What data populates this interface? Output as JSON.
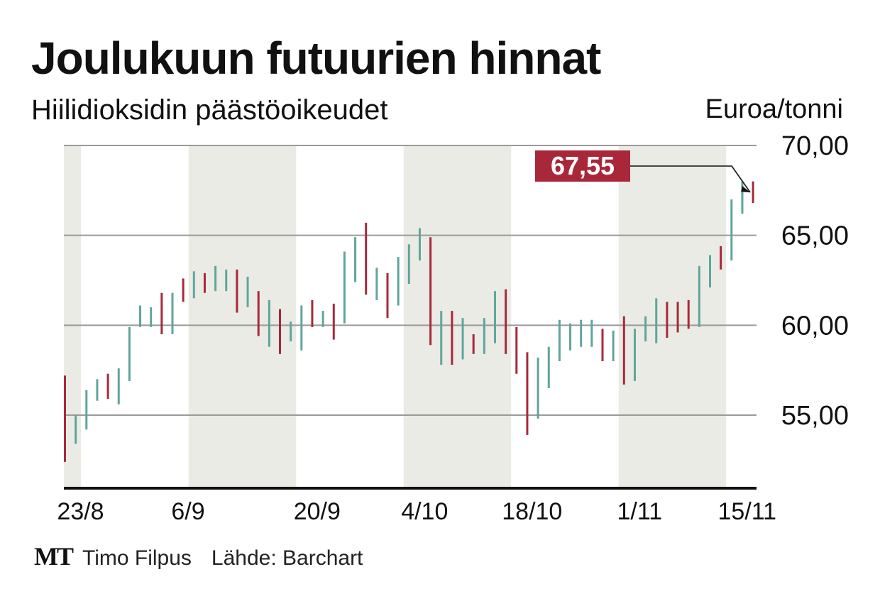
{
  "title": "Joulukuun futuurien hinnat",
  "subtitle": "Hiilidioksidin päästöoikeudet",
  "footer": {
    "logo": "MT",
    "author": "Timo Filpus",
    "source": "Lähde: Barchart"
  },
  "colors": {
    "up": "#5fa59c",
    "down": "#a8283a",
    "shade": "#ebebe5",
    "grid": "#9a9a9a",
    "axis": "#111111",
    "badge": "#a8283a"
  },
  "chart_data": {
    "type": "ohlc-bar",
    "ylabel": "Euroa/tonni",
    "ylim": [
      51,
      70
    ],
    "yticks": [
      55,
      60,
      65,
      70
    ],
    "ytick_labels": [
      "55,00",
      "60,00",
      "65,00",
      "70,00"
    ],
    "xtick_labels": [
      "23/8",
      "6/9",
      "20/9",
      "4/10",
      "18/10",
      "1/11",
      "15/11"
    ],
    "xtick_index": [
      0,
      10,
      22,
      32,
      42,
      52,
      62
    ],
    "shaded_week_ranges": [
      [
        0,
        1
      ],
      [
        12,
        21
      ],
      [
        32,
        41
      ],
      [
        52,
        61
      ]
    ],
    "last_value_label": "67,55",
    "last_value": 67.55,
    "bars": [
      {
        "dir": "down",
        "low": 52.4,
        "high": 57.2
      },
      {
        "dir": "up",
        "low": 53.4,
        "high": 55.0
      },
      {
        "dir": "up",
        "low": 54.2,
        "high": 56.4
      },
      {
        "dir": "up",
        "low": 55.8,
        "high": 57.0
      },
      {
        "dir": "down",
        "low": 55.9,
        "high": 57.3
      },
      {
        "dir": "up",
        "low": 55.6,
        "high": 57.6
      },
      {
        "dir": "up",
        "low": 56.9,
        "high": 59.9
      },
      {
        "dir": "up",
        "low": 59.9,
        "high": 61.1
      },
      {
        "dir": "up",
        "low": 59.9,
        "high": 61.0
      },
      {
        "dir": "down",
        "low": 59.5,
        "high": 61.8
      },
      {
        "dir": "up",
        "low": 59.5,
        "high": 61.8
      },
      {
        "dir": "down",
        "low": 61.3,
        "high": 62.6
      },
      {
        "dir": "up",
        "low": 61.5,
        "high": 63.0
      },
      {
        "dir": "down",
        "low": 61.8,
        "high": 62.9
      },
      {
        "dir": "up",
        "low": 61.9,
        "high": 63.3
      },
      {
        "dir": "up",
        "low": 61.9,
        "high": 63.1
      },
      {
        "dir": "down",
        "low": 60.7,
        "high": 63.1
      },
      {
        "dir": "up",
        "low": 61.0,
        "high": 62.7
      },
      {
        "dir": "down",
        "low": 59.4,
        "high": 61.9
      },
      {
        "dir": "up",
        "low": 58.8,
        "high": 61.4
      },
      {
        "dir": "down",
        "low": 58.4,
        "high": 60.9
      },
      {
        "dir": "up",
        "low": 59.1,
        "high": 60.2
      },
      {
        "dir": "up",
        "low": 58.6,
        "high": 61.1
      },
      {
        "dir": "down",
        "low": 59.9,
        "high": 61.4
      },
      {
        "dir": "up",
        "low": 59.9,
        "high": 60.8
      },
      {
        "dir": "down",
        "low": 59.2,
        "high": 61.2
      },
      {
        "dir": "up",
        "low": 60.1,
        "high": 64.1
      },
      {
        "dir": "up",
        "low": 62.4,
        "high": 64.9
      },
      {
        "dir": "down",
        "low": 61.7,
        "high": 65.7
      },
      {
        "dir": "up",
        "low": 61.4,
        "high": 63.2
      },
      {
        "dir": "down",
        "low": 60.4,
        "high": 62.9
      },
      {
        "dir": "up",
        "low": 61.1,
        "high": 63.8
      },
      {
        "dir": "up",
        "low": 62.3,
        "high": 64.5
      },
      {
        "dir": "up",
        "low": 63.6,
        "high": 65.4
      },
      {
        "dir": "down",
        "low": 58.9,
        "high": 64.9
      },
      {
        "dir": "up",
        "low": 57.8,
        "high": 60.8
      },
      {
        "dir": "down",
        "low": 57.8,
        "high": 60.8
      },
      {
        "dir": "up",
        "low": 58.1,
        "high": 60.4
      },
      {
        "dir": "down",
        "low": 58.4,
        "high": 59.5
      },
      {
        "dir": "up",
        "low": 58.4,
        "high": 60.4
      },
      {
        "dir": "up",
        "low": 59.0,
        "high": 61.9
      },
      {
        "dir": "down",
        "low": 58.4,
        "high": 62.0
      },
      {
        "dir": "down",
        "low": 57.3,
        "high": 59.9
      },
      {
        "dir": "down",
        "low": 53.9,
        "high": 58.5
      },
      {
        "dir": "up",
        "low": 54.8,
        "high": 58.2
      },
      {
        "dir": "up",
        "low": 56.5,
        "high": 58.8
      },
      {
        "dir": "up",
        "low": 58.0,
        "high": 60.3
      },
      {
        "dir": "up",
        "low": 58.6,
        "high": 60.1
      },
      {
        "dir": "up",
        "low": 58.8,
        "high": 60.3
      },
      {
        "dir": "up",
        "low": 58.8,
        "high": 60.3
      },
      {
        "dir": "down",
        "low": 58.0,
        "high": 59.8
      },
      {
        "dir": "up",
        "low": 58.0,
        "high": 59.7
      },
      {
        "dir": "down",
        "low": 56.7,
        "high": 60.5
      },
      {
        "dir": "up",
        "low": 56.9,
        "high": 59.8
      },
      {
        "dir": "up",
        "low": 59.1,
        "high": 60.5
      },
      {
        "dir": "up",
        "low": 59.0,
        "high": 61.5
      },
      {
        "dir": "down",
        "low": 59.3,
        "high": 61.3
      },
      {
        "dir": "down",
        "low": 59.6,
        "high": 61.3
      },
      {
        "dir": "down",
        "low": 59.8,
        "high": 61.4
      },
      {
        "dir": "up",
        "low": 59.9,
        "high": 63.3
      },
      {
        "dir": "up",
        "low": 62.1,
        "high": 63.9
      },
      {
        "dir": "down",
        "low": 63.1,
        "high": 64.4
      },
      {
        "dir": "up",
        "low": 63.6,
        "high": 67.0
      },
      {
        "dir": "up",
        "low": 66.2,
        "high": 68.0
      },
      {
        "dir": "down",
        "low": 66.8,
        "high": 68.0
      }
    ]
  }
}
